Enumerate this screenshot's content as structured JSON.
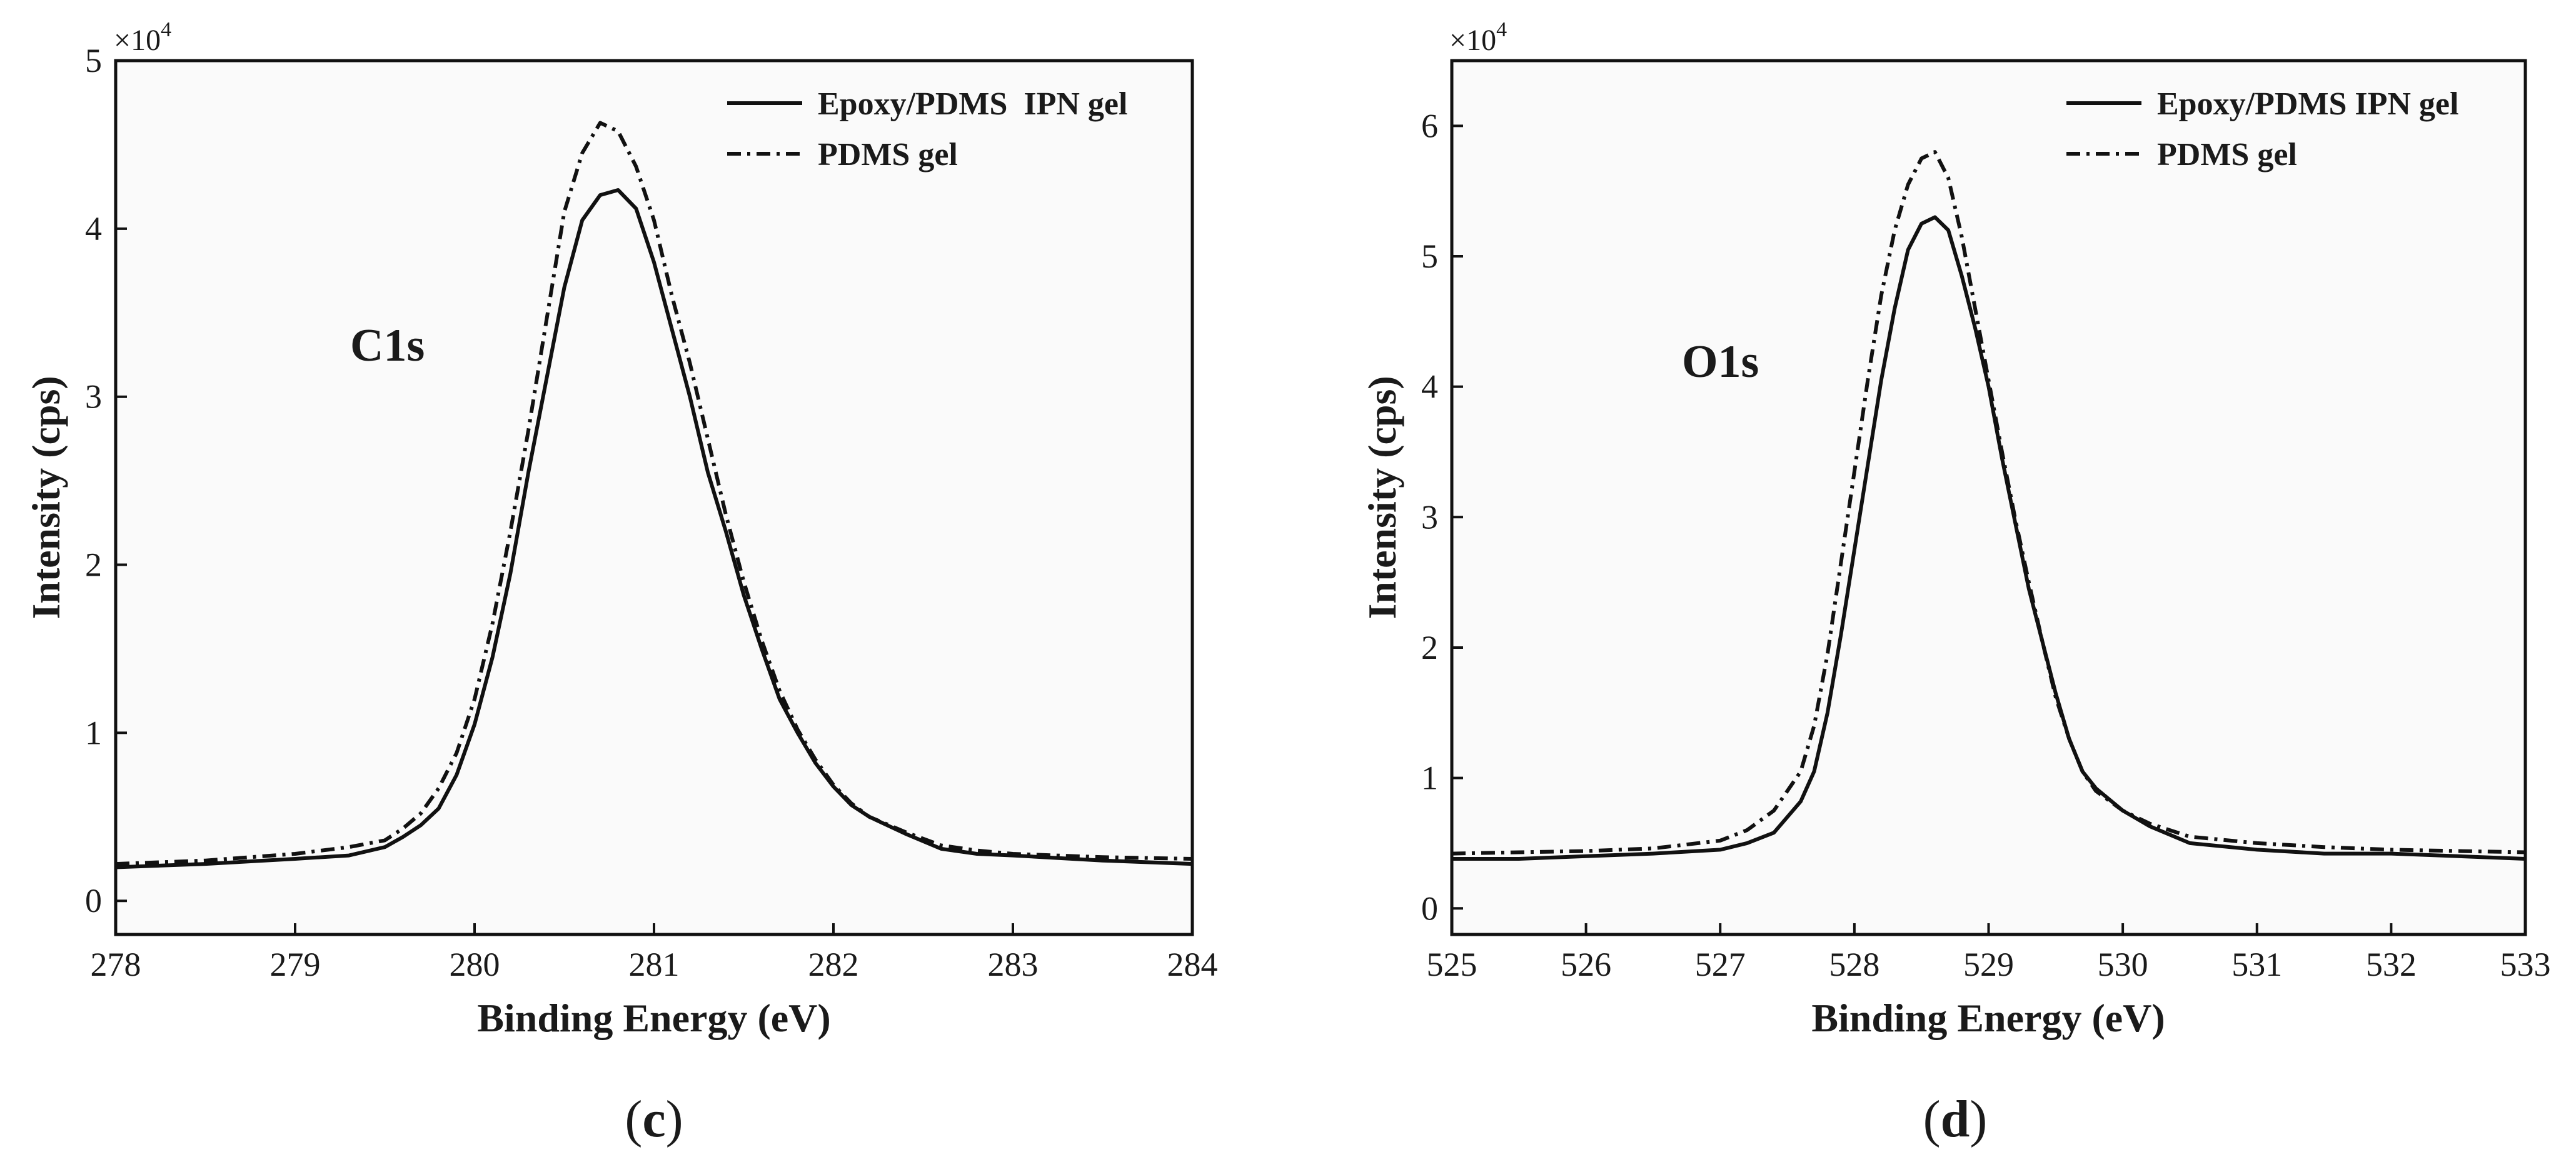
{
  "figure": {
    "colors": {
      "ink": "#111111",
      "plot_background": "#fafafa",
      "page_background": "#ffffff"
    }
  },
  "chart_data": [
    {
      "type": "line",
      "panel_label": "(c)",
      "panel_letter": "c",
      "peak_label": "C1s",
      "xlabel": "Binding Energy (eV)",
      "ylabel": "Intensity (cps)",
      "y_multiplier": "×10",
      "y_multiplier_exp": "4",
      "xlim": [
        278,
        284
      ],
      "ylim": [
        -0.2,
        5
      ],
      "xticks": [
        278,
        279,
        280,
        281,
        282,
        283,
        284
      ],
      "yticks": [
        0,
        1,
        2,
        3,
        4,
        5
      ],
      "legend_position": "top-right",
      "series": [
        {
          "name": "Epoxy/PDMS  IPN gel",
          "style": "solid",
          "x": [
            278.0,
            278.5,
            279.0,
            279.3,
            279.5,
            279.6,
            279.7,
            279.8,
            279.9,
            280.0,
            280.1,
            280.2,
            280.3,
            280.4,
            280.5,
            280.6,
            280.7,
            280.8,
            280.9,
            281.0,
            281.1,
            281.2,
            281.3,
            281.4,
            281.5,
            281.6,
            281.7,
            281.8,
            281.9,
            282.0,
            282.1,
            282.2,
            282.4,
            282.6,
            282.8,
            283.0,
            283.5,
            284.0
          ],
          "y": [
            0.2,
            0.22,
            0.25,
            0.27,
            0.32,
            0.38,
            0.45,
            0.55,
            0.75,
            1.05,
            1.45,
            1.95,
            2.55,
            3.1,
            3.65,
            4.05,
            4.2,
            4.23,
            4.12,
            3.8,
            3.4,
            3.0,
            2.55,
            2.2,
            1.82,
            1.5,
            1.2,
            1.0,
            0.82,
            0.68,
            0.57,
            0.5,
            0.4,
            0.31,
            0.28,
            0.27,
            0.24,
            0.22
          ]
        },
        {
          "name": "PDMS gel",
          "style": "dashdot",
          "x": [
            278.0,
            278.5,
            279.0,
            279.3,
            279.5,
            279.6,
            279.7,
            279.8,
            279.9,
            280.0,
            280.1,
            280.2,
            280.3,
            280.4,
            280.5,
            280.6,
            280.7,
            280.8,
            280.9,
            281.0,
            281.1,
            281.2,
            281.3,
            281.4,
            281.5,
            281.6,
            281.7,
            281.8,
            281.9,
            282.0,
            282.1,
            282.2,
            282.4,
            282.6,
            282.8,
            283.0,
            283.5,
            284.0
          ],
          "y": [
            0.22,
            0.24,
            0.28,
            0.32,
            0.36,
            0.43,
            0.52,
            0.67,
            0.88,
            1.2,
            1.65,
            2.2,
            2.8,
            3.45,
            4.1,
            4.45,
            4.63,
            4.58,
            4.37,
            4.05,
            3.6,
            3.2,
            2.75,
            2.3,
            1.9,
            1.55,
            1.25,
            1.02,
            0.84,
            0.69,
            0.58,
            0.5,
            0.41,
            0.33,
            0.3,
            0.28,
            0.26,
            0.25
          ]
        }
      ]
    },
    {
      "type": "line",
      "panel_label": "(d)",
      "panel_letter": "d",
      "peak_label": "O1s",
      "xlabel": "Binding Energy (eV)",
      "ylabel": "Intensity (cps)",
      "y_multiplier": "×10",
      "y_multiplier_exp": "4",
      "xlim": [
        525,
        533
      ],
      "ylim": [
        -0.2,
        6.5
      ],
      "xticks": [
        525,
        526,
        527,
        528,
        529,
        530,
        531,
        532,
        533
      ],
      "yticks": [
        0,
        1,
        2,
        3,
        4,
        5,
        6
      ],
      "legend_position": "top-right",
      "series": [
        {
          "name": "Epoxy/PDMS IPN gel",
          "style": "solid",
          "x": [
            525.0,
            525.5,
            526.0,
            526.5,
            527.0,
            527.2,
            527.4,
            527.6,
            527.7,
            527.8,
            527.9,
            528.0,
            528.1,
            528.2,
            528.3,
            528.4,
            528.5,
            528.6,
            528.7,
            528.8,
            528.9,
            529.0,
            529.1,
            529.2,
            529.3,
            529.4,
            529.5,
            529.6,
            529.7,
            529.8,
            530.0,
            530.2,
            530.5,
            531.0,
            531.5,
            532.0,
            532.5,
            533.0
          ],
          "y": [
            0.38,
            0.38,
            0.4,
            0.42,
            0.45,
            0.5,
            0.58,
            0.82,
            1.05,
            1.5,
            2.1,
            2.75,
            3.4,
            4.05,
            4.6,
            5.05,
            5.25,
            5.3,
            5.2,
            4.85,
            4.45,
            4.0,
            3.45,
            2.95,
            2.45,
            2.05,
            1.65,
            1.3,
            1.05,
            0.92,
            0.75,
            0.63,
            0.5,
            0.45,
            0.42,
            0.42,
            0.4,
            0.38
          ]
        },
        {
          "name": "PDMS gel",
          "style": "dashdot",
          "x": [
            525.0,
            525.5,
            526.0,
            526.5,
            527.0,
            527.2,
            527.4,
            527.6,
            527.7,
            527.8,
            527.9,
            528.0,
            528.1,
            528.2,
            528.3,
            528.4,
            528.5,
            528.6,
            528.7,
            528.8,
            528.9,
            529.0,
            529.1,
            529.2,
            529.3,
            529.4,
            529.5,
            529.6,
            529.7,
            529.8,
            530.0,
            530.2,
            530.5,
            531.0,
            531.5,
            532.0,
            532.5,
            533.0
          ],
          "y": [
            0.42,
            0.43,
            0.44,
            0.46,
            0.52,
            0.6,
            0.75,
            1.05,
            1.4,
            1.95,
            2.65,
            3.35,
            4.05,
            4.7,
            5.2,
            5.55,
            5.75,
            5.8,
            5.6,
            5.15,
            4.6,
            4.05,
            3.5,
            2.98,
            2.5,
            2.05,
            1.62,
            1.3,
            1.05,
            0.9,
            0.75,
            0.65,
            0.55,
            0.5,
            0.47,
            0.45,
            0.44,
            0.43
          ]
        }
      ]
    }
  ]
}
